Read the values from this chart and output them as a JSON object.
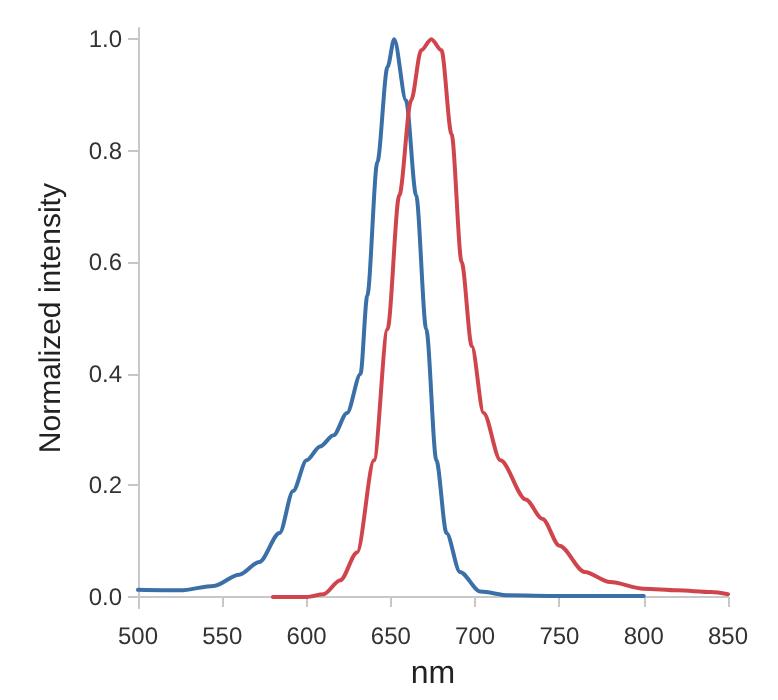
{
  "chart_data": {
    "type": "line",
    "xlabel": "nm",
    "ylabel": "Normalized intensity",
    "xlim": [
      500,
      850
    ],
    "xticks": [
      500,
      550,
      600,
      650,
      700,
      750,
      800,
      850
    ],
    "ylim": [
      -0.02,
      1.02
    ],
    "yticks": [
      {
        "value": 0,
        "label": "0.0"
      },
      {
        "value": 0.2,
        "label": "0.2"
      },
      {
        "value": 0.4,
        "label": "0.4"
      },
      {
        "value": 0.6,
        "label": "0.6"
      },
      {
        "value": 0.8,
        "label": "0.8"
      },
      {
        "value": 1,
        "label": "1.0"
      }
    ],
    "grid": false,
    "marker": "none",
    "line_style": "solid",
    "series": [
      {
        "color": "#3a6fa8",
        "x": [
          500,
          525,
          545,
          560,
          572,
          584,
          592,
          600,
          608,
          616,
          624,
          632,
          636,
          642,
          648,
          652,
          659,
          665,
          671,
          677,
          683,
          691,
          703,
          720,
          750,
          800
        ],
        "values": [
          0.013,
          0.012,
          0.02,
          0.04,
          0.063,
          0.115,
          0.19,
          0.245,
          0.27,
          0.29,
          0.33,
          0.4,
          0.54,
          0.78,
          0.95,
          1.0,
          0.89,
          0.72,
          0.48,
          0.245,
          0.115,
          0.045,
          0.01,
          0.003,
          0.002,
          0.002
        ]
      },
      {
        "color": "#d0454c",
        "x": [
          580,
          600,
          610,
          620,
          630,
          640,
          648,
          655,
          662,
          668,
          674,
          680,
          686,
          692,
          698,
          705,
          715,
          730,
          740,
          750,
          765,
          780,
          800,
          820,
          840,
          850
        ],
        "values": [
          0.0,
          0.0,
          0.005,
          0.03,
          0.08,
          0.245,
          0.48,
          0.72,
          0.89,
          0.98,
          1.0,
          0.98,
          0.83,
          0.6,
          0.45,
          0.33,
          0.245,
          0.175,
          0.14,
          0.092,
          0.045,
          0.027,
          0.015,
          0.012,
          0.009,
          0.005
        ]
      }
    ]
  }
}
